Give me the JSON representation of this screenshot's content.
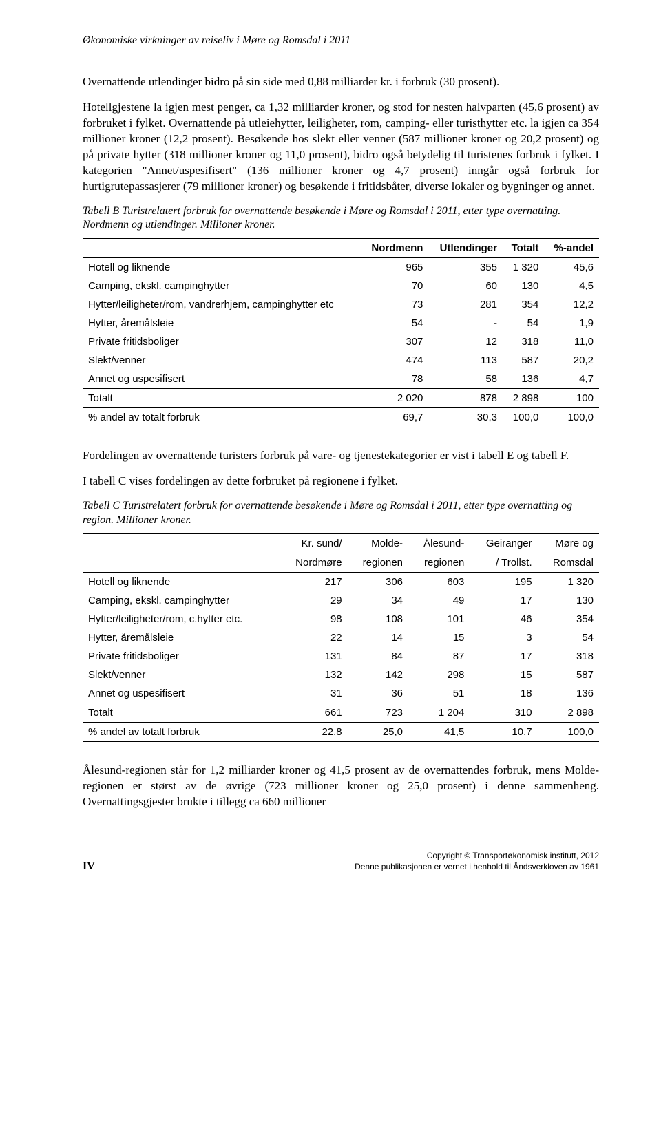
{
  "header": {
    "title": "Økonomiske virkninger av reiseliv i Møre og Romsdal i 2011"
  },
  "para1": "Overnattende utlendinger bidro på sin side med 0,88 milliarder kr. i forbruk (30 prosent).",
  "para2": "Hotellgjestene la igjen mest penger, ca 1,32 milliarder kroner, og stod for nesten halvparten (45,6 prosent) av forbruket i fylket. Overnattende på utleiehytter, leiligheter, rom, camping- eller turisthytter etc. la igjen ca 354 millioner kroner (12,2 prosent). Besøkende hos slekt eller venner (587 millioner kroner og 20,2 prosent) og på private hytter (318 millioner kroner og 11,0 prosent), bidro også betydelig til turistenes forbruk i fylket. I kategorien \"Annet/uspesifisert\" (136 millioner kroner og 4,7 prosent) inngår også forbruk for hurtigrutepassasjerer (79 millioner kroner) og besøkende i fritidsbåter, diverse lokaler og bygninger og annet.",
  "tableB": {
    "caption": "Tabell B Turistrelatert forbruk for overnattende besøkende i Møre og Romsdal i 2011, etter type overnatting. Nordmenn og utlendinger. Millioner kroner.",
    "headers": [
      "",
      "Nordmenn",
      "Utlendinger",
      "Totalt",
      "%-andel"
    ],
    "rows": [
      [
        "Hotell og liknende",
        "965",
        "355",
        "1 320",
        "45,6"
      ],
      [
        "Camping, ekskl. campinghytter",
        "70",
        "60",
        "130",
        "4,5"
      ],
      [
        "Hytter/leiligheter/rom, vandrerhjem, campinghytter etc",
        "73",
        "281",
        "354",
        "12,2"
      ],
      [
        "Hytter, åremålsleie",
        "54",
        "-",
        "54",
        "1,9"
      ],
      [
        "Private fritidsboliger",
        "307",
        "12",
        "318",
        "11,0"
      ],
      [
        "Slekt/venner",
        "474",
        "113",
        "587",
        "20,2"
      ],
      [
        "Annet og uspesifisert",
        "78",
        "58",
        "136",
        "4,7"
      ]
    ],
    "total": [
      "Totalt",
      "2 020",
      "878",
      "2 898",
      "100"
    ],
    "pct": [
      "% andel av totalt forbruk",
      "69,7",
      "30,3",
      "100,0",
      "100,0"
    ]
  },
  "para3": "Fordelingen av overnattende turisters forbruk på vare- og tjenestekategorier er vist i tabell E og tabell F.",
  "para4": "I tabell C vises fordelingen av dette forbruket på regionene i fylket.",
  "tableC": {
    "caption": "Tabell C Turistrelatert forbruk for overnattende besøkende i Møre og Romsdal i 2011, etter type overnatting og region. Millioner kroner.",
    "h1": [
      "",
      "Kr. sund/",
      "Molde-",
      "Ålesund-",
      "Geiranger",
      "Møre og"
    ],
    "h2": [
      "",
      "Nordmøre",
      "regionen",
      "regionen",
      "/ Trollst.",
      "Romsdal"
    ],
    "rows": [
      [
        "Hotell og liknende",
        "217",
        "306",
        "603",
        "195",
        "1 320"
      ],
      [
        "Camping, ekskl. campinghytter",
        "29",
        "34",
        "49",
        "17",
        "130"
      ],
      [
        "Hytter/leiligheter/rom, c.hytter etc.",
        "98",
        "108",
        "101",
        "46",
        "354"
      ],
      [
        "Hytter, åremålsleie",
        "22",
        "14",
        "15",
        "3",
        "54"
      ],
      [
        "Private fritidsboliger",
        "131",
        "84",
        "87",
        "17",
        "318"
      ],
      [
        "Slekt/venner",
        "132",
        "142",
        "298",
        "15",
        "587"
      ],
      [
        "Annet og uspesifisert",
        "31",
        "36",
        "51",
        "18",
        "136"
      ]
    ],
    "total": [
      "Totalt",
      "661",
      "723",
      "1 204",
      "310",
      "2 898"
    ],
    "pct": [
      "% andel av totalt forbruk",
      "22,8",
      "25,0",
      "41,5",
      "10,7",
      "100,0"
    ]
  },
  "para5": "Ålesund-regionen står for 1,2 milliarder kroner og 41,5 prosent av de overnattendes forbruk, mens Molde-regionen er størst av de øvrige (723 millioner kroner og 25,0 prosent) i denne sammenheng. Overnattingsgjester brukte i tillegg ca 660 millioner",
  "footer": {
    "pageNum": "IV",
    "copyright": "Copyright © Transportøkonomisk institutt, 2012",
    "notice": "Denne publikasjonen er vernet i henhold til Åndsverkloven av 1961"
  }
}
